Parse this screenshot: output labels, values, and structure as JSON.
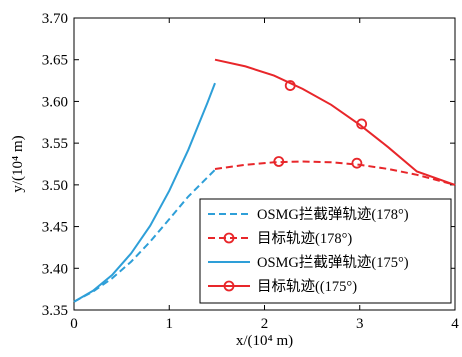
{
  "chart_data": {
    "type": "line",
    "xlabel": "x/(10⁴ m)",
    "ylabel": "y/(10⁴ m)",
    "xlim": [
      0,
      4
    ],
    "ylim": [
      3.35,
      3.7
    ],
    "xticks": [
      "0",
      "1",
      "2",
      "3",
      "4"
    ],
    "yticks": [
      "3.35",
      "3.40",
      "3.45",
      "3.50",
      "3.55",
      "3.60",
      "3.65",
      "3.70"
    ],
    "grid": false,
    "legend_position": "bottom-right",
    "series": [
      {
        "name": "OSMG拦截弹轨迹(178°)",
        "color": "#2e9fd8",
        "style": "dashed",
        "marker": "none",
        "x": [
          0,
          0.2,
          0.4,
          0.6,
          0.8,
          1.0,
          1.2,
          1.48
        ],
        "y": [
          3.36,
          3.372,
          3.388,
          3.408,
          3.432,
          3.459,
          3.486,
          3.518
        ]
      },
      {
        "name": "目标轨迹(178°)",
        "color": "#e8262a",
        "style": "dashed",
        "marker": "circle",
        "x": [
          1.48,
          1.8,
          2.1,
          2.4,
          2.7,
          3.0,
          3.3,
          3.6,
          4.0
        ],
        "y": [
          3.519,
          3.524,
          3.527,
          3.528,
          3.527,
          3.524,
          3.519,
          3.512,
          3.5
        ],
        "marker_x": [
          2.15,
          2.97
        ],
        "marker_y": [
          3.528,
          3.526
        ]
      },
      {
        "name": "OSMG拦截弹轨迹(175°)",
        "color": "#2e9fd8",
        "style": "solid",
        "marker": "none",
        "x": [
          0,
          0.2,
          0.4,
          0.6,
          0.8,
          1.0,
          1.2,
          1.4,
          1.48
        ],
        "y": [
          3.36,
          3.373,
          3.392,
          3.418,
          3.451,
          3.493,
          3.542,
          3.598,
          3.622
        ]
      },
      {
        "name": "目标轨迹((175°)",
        "color": "#e8262a",
        "style": "solid",
        "marker": "circle",
        "x": [
          1.48,
          1.8,
          2.1,
          2.4,
          2.7,
          3.0,
          3.3,
          3.6,
          4.0
        ],
        "y": [
          3.65,
          3.642,
          3.631,
          3.615,
          3.596,
          3.572,
          3.545,
          3.516,
          3.5
        ],
        "marker_x": [
          2.27,
          3.02
        ],
        "marker_y": [
          3.619,
          3.573
        ]
      }
    ]
  }
}
